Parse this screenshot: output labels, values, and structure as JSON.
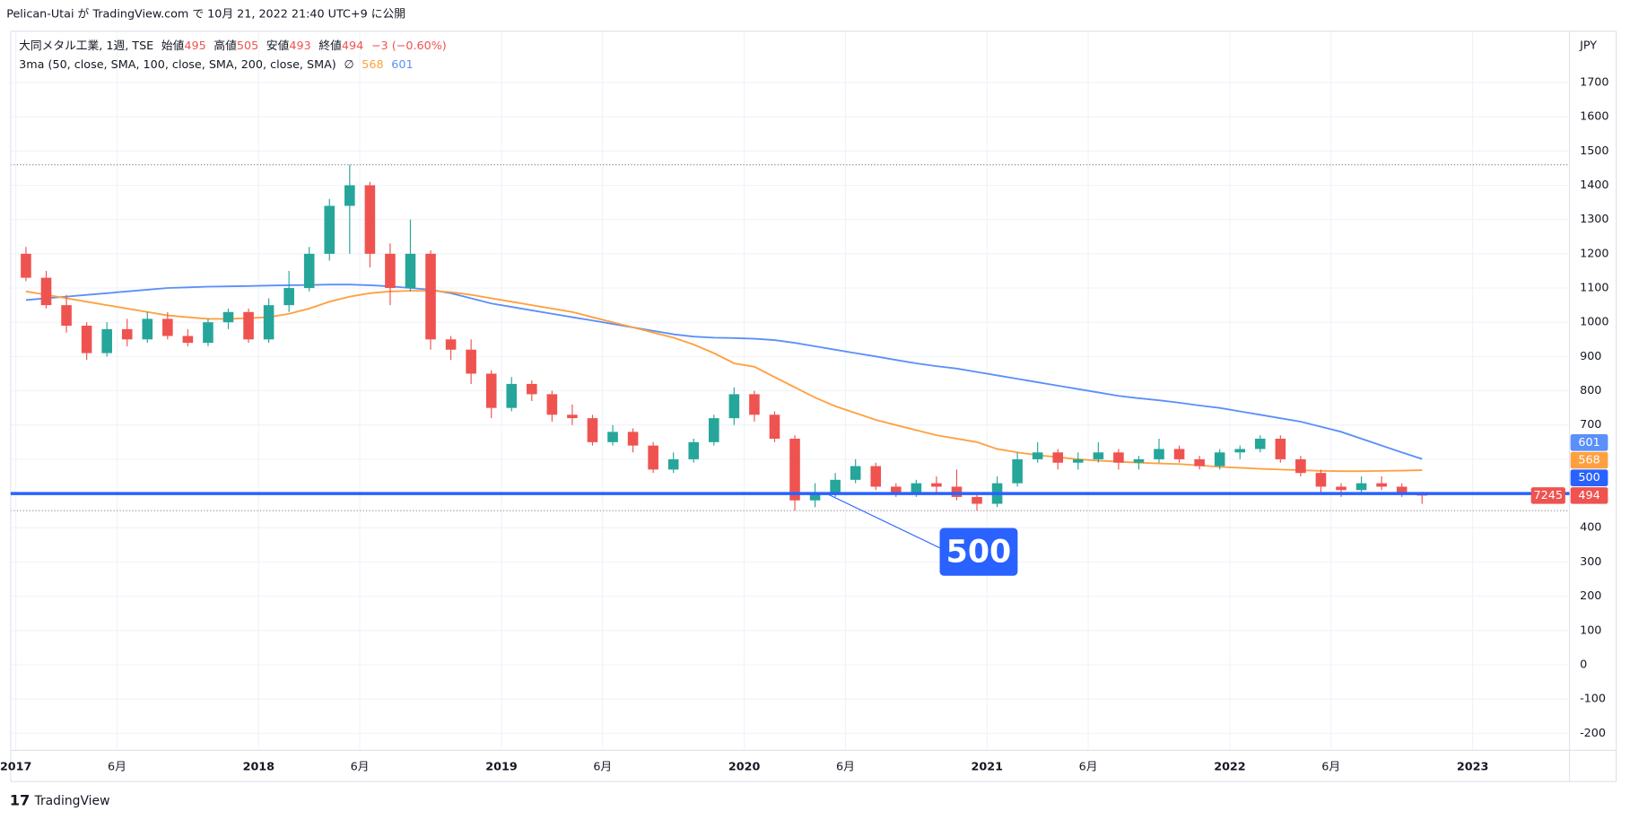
{
  "header": {
    "published": "Pelican-Utai が TradingView.com で 10月 21, 2022 21:40 UTC+9 に公開"
  },
  "legend": {
    "symbol": "大同メタル工業, 1週, TSE",
    "open_label": "始値",
    "open": 495,
    "high_label": "高値",
    "high": 505,
    "low_label": "安値",
    "low": 493,
    "close_label": "終値",
    "close": 494,
    "change": "−3 (−0.60%)",
    "indicator": "3ma (50, close, SMA, 100, close, SMA, 200, close, SMA)",
    "empty": "∅"
  },
  "footer": {
    "brand": "TradingView"
  },
  "chart_data": {
    "type": "candlestick",
    "currency": "JPY",
    "x": [
      "2017-01",
      "2017-02",
      "2017-03",
      "2017-04",
      "2017-05",
      "2017-06",
      "2017-07",
      "2017-08",
      "2017-09",
      "2017-10",
      "2017-11",
      "2017-12",
      "2018-01",
      "2018-02",
      "2018-03",
      "2018-04",
      "2018-05",
      "2018-06",
      "2018-07",
      "2018-08",
      "2018-09",
      "2018-10",
      "2018-11",
      "2018-12",
      "2019-01",
      "2019-02",
      "2019-03",
      "2019-04",
      "2019-05",
      "2019-06",
      "2019-07",
      "2019-08",
      "2019-09",
      "2019-10",
      "2019-11",
      "2019-12",
      "2020-01",
      "2020-02",
      "2020-03",
      "2020-04",
      "2020-05",
      "2020-06",
      "2020-07",
      "2020-08",
      "2020-09",
      "2020-10",
      "2020-11",
      "2020-12",
      "2021-01",
      "2021-02",
      "2021-03",
      "2021-04",
      "2021-05",
      "2021-06",
      "2021-07",
      "2021-08",
      "2021-09",
      "2021-10",
      "2021-11",
      "2021-12",
      "2022-01",
      "2022-02",
      "2022-03",
      "2022-04",
      "2022-05",
      "2022-06",
      "2022-07",
      "2022-08",
      "2022-09",
      "2022-10"
    ],
    "open": [
      1200,
      1130,
      1050,
      990,
      910,
      980,
      950,
      1010,
      960,
      940,
      1000,
      1030,
      950,
      1050,
      1100,
      1200,
      1340,
      1400,
      1200,
      1100,
      1200,
      950,
      920,
      850,
      750,
      820,
      790,
      730,
      720,
      650,
      680,
      640,
      570,
      600,
      650,
      720,
      790,
      730,
      660,
      480,
      500,
      540,
      580,
      520,
      500,
      530,
      520,
      490,
      470,
      530,
      600,
      620,
      590,
      600,
      620,
      590,
      600,
      630,
      600,
      580,
      620,
      630,
      660,
      600,
      560,
      520,
      510,
      530,
      520,
      500
    ],
    "high": [
      1220,
      1150,
      1080,
      1000,
      1000,
      1010,
      1030,
      1030,
      980,
      1010,
      1040,
      1040,
      1070,
      1150,
      1220,
      1360,
      1460,
      1410,
      1230,
      1300,
      1210,
      960,
      950,
      860,
      840,
      830,
      800,
      760,
      730,
      700,
      690,
      650,
      620,
      660,
      730,
      810,
      800,
      740,
      670,
      530,
      560,
      600,
      590,
      530,
      540,
      550,
      570,
      500,
      550,
      620,
      650,
      630,
      620,
      650,
      630,
      610,
      660,
      640,
      610,
      630,
      640,
      670,
      670,
      610,
      570,
      530,
      550,
      550,
      530,
      505
    ],
    "low": [
      1120,
      1040,
      970,
      890,
      900,
      930,
      940,
      950,
      930,
      930,
      980,
      940,
      940,
      1030,
      1090,
      1180,
      1200,
      1160,
      1050,
      1090,
      920,
      890,
      820,
      720,
      740,
      770,
      710,
      700,
      640,
      640,
      620,
      560,
      560,
      590,
      640,
      700,
      710,
      650,
      450,
      460,
      490,
      530,
      510,
      490,
      490,
      500,
      480,
      450,
      460,
      520,
      590,
      570,
      570,
      590,
      570,
      570,
      590,
      590,
      570,
      570,
      600,
      620,
      590,
      550,
      500,
      490,
      500,
      510,
      490,
      470
    ],
    "close": [
      1130,
      1050,
      990,
      910,
      980,
      950,
      1010,
      960,
      940,
      1000,
      1030,
      950,
      1050,
      1100,
      1200,
      1340,
      1400,
      1200,
      1100,
      1200,
      950,
      920,
      850,
      750,
      820,
      790,
      730,
      720,
      650,
      680,
      640,
      570,
      600,
      650,
      720,
      790,
      730,
      660,
      480,
      500,
      540,
      580,
      520,
      500,
      530,
      520,
      490,
      470,
      530,
      600,
      620,
      590,
      600,
      620,
      590,
      600,
      630,
      600,
      580,
      620,
      630,
      660,
      600,
      560,
      520,
      510,
      530,
      520,
      500,
      494
    ],
    "up_color": "#26a69a",
    "down_color": "#ef5350",
    "lines": [
      {
        "color": "#5b8ff9",
        "values": [
          1065,
          1070,
          1075,
          1080,
          1085,
          1090,
          1095,
          1100,
          1102,
          1104,
          1105,
          1106,
          1107,
          1108,
          1109,
          1110,
          1110,
          1108,
          1105,
          1100,
          1095,
          1085,
          1070,
          1055,
          1045,
          1035,
          1025,
          1015,
          1005,
          995,
          985,
          975,
          965,
          958,
          955,
          954,
          952,
          948,
          940,
          930,
          920,
          910,
          900,
          890,
          880,
          872,
          865,
          855,
          845,
          835,
          825,
          815,
          805,
          795,
          785,
          778,
          772,
          765,
          757,
          750,
          740,
          730,
          720,
          710,
          695,
          680,
          660,
          640,
          620,
          601
        ]
      },
      {
        "color": "#ffa040",
        "values": [
          1090,
          1080,
          1070,
          1060,
          1050,
          1040,
          1030,
          1020,
          1015,
          1010,
          1010,
          1012,
          1015,
          1025,
          1040,
          1060,
          1075,
          1085,
          1090,
          1092,
          1092,
          1088,
          1080,
          1070,
          1060,
          1050,
          1040,
          1030,
          1015,
          1000,
          985,
          970,
          955,
          935,
          910,
          880,
          870,
          840,
          810,
          780,
          755,
          735,
          715,
          700,
          685,
          670,
          660,
          650,
          630,
          620,
          612,
          606,
          600,
          596,
          593,
          590,
          588,
          586,
          582,
          578,
          575,
          572,
          570,
          568,
          566,
          565,
          565,
          566,
          567,
          568
        ]
      }
    ],
    "hline": {
      "value": 500,
      "color": "#2962ff"
    },
    "last_volume": 7245,
    "ylim": [
      -250,
      1850
    ],
    "yticks": [
      -200,
      -100,
      0,
      100,
      200,
      300,
      400,
      500,
      600,
      700,
      800,
      900,
      1000,
      1100,
      1200,
      1300,
      1400,
      1500,
      1600,
      1700
    ],
    "xticks": [
      {
        "value": "2017-01",
        "label": "2017"
      },
      {
        "value": "2017-06",
        "label": "6月"
      },
      {
        "value": "2018-01",
        "label": "2018"
      },
      {
        "value": "2018-06",
        "label": "6月"
      },
      {
        "value": "2019-01",
        "label": "2019"
      },
      {
        "value": "2019-06",
        "label": "6月"
      },
      {
        "value": "2020-01",
        "label": "2020"
      },
      {
        "value": "2020-06",
        "label": "6月"
      },
      {
        "value": "2021-01",
        "label": "2021"
      },
      {
        "value": "2021-06",
        "label": "6月"
      },
      {
        "value": "2022-01",
        "label": "2022"
      },
      {
        "value": "2022-06",
        "label": "6月"
      },
      {
        "value": "2023-01",
        "label": "2023"
      }
    ],
    "grid": true
  }
}
